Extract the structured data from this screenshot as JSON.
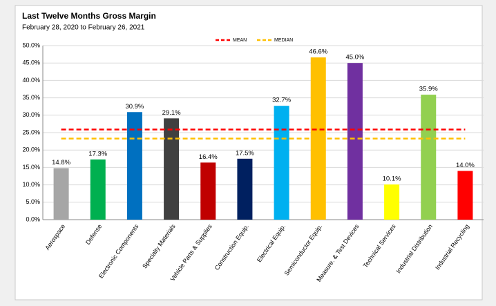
{
  "chart_data": {
    "type": "bar",
    "title": "Last Twelve Months Gross Margin",
    "subtitle": "February 28, 2020 to February 26, 2021",
    "categories": [
      "Aerospace",
      "Defense",
      "Electronic Components",
      "Specialty Materials",
      "Vehicle Parts & Supplies",
      "Construction Equip.",
      "Electrical Equip.",
      "Semiconductor Equip.",
      "Measure. & Test Devices",
      "Technical Services",
      "Industrial Distribution",
      "Industrial Recycling"
    ],
    "values": [
      14.8,
      17.3,
      30.9,
      29.1,
      16.4,
      17.5,
      32.7,
      46.6,
      45.0,
      10.1,
      35.9,
      14.0
    ],
    "value_labels": [
      "14.8%",
      "17.3%",
      "30.9%",
      "29.1%",
      "16.4%",
      "17.5%",
      "32.7%",
      "46.6%",
      "45.0%",
      "10.1%",
      "35.9%",
      "14.0%"
    ],
    "colors": [
      "#a6a6a6",
      "#00b050",
      "#0070c0",
      "#404040",
      "#c00000",
      "#002060",
      "#00b0f0",
      "#ffc000",
      "#7030a0",
      "#ffff00",
      "#92d050",
      "#ff0000"
    ],
    "reference_lines": [
      {
        "name": "MEAN",
        "color": "#ff0000",
        "value": 25.9
      },
      {
        "name": "MEDIAN",
        "color": "#ffc000",
        "value": 23.3
      }
    ],
    "ylim": [
      0,
      50
    ],
    "yticks": [
      {
        "value": 0,
        "label": "0.0%"
      },
      {
        "value": 5,
        "label": "5.0%"
      },
      {
        "value": 10,
        "label": "10.0%"
      },
      {
        "value": 15,
        "label": "15.0%"
      },
      {
        "value": 20,
        "label": "20.0%"
      },
      {
        "value": 25,
        "label": "25.0%"
      },
      {
        "value": 30,
        "label": "30.0%"
      },
      {
        "value": 35,
        "label": "35.0%"
      },
      {
        "value": 40,
        "label": "40.0%"
      },
      {
        "value": 45,
        "label": "45.0%"
      },
      {
        "value": 50,
        "label": "50.0%"
      }
    ],
    "grid": true
  }
}
